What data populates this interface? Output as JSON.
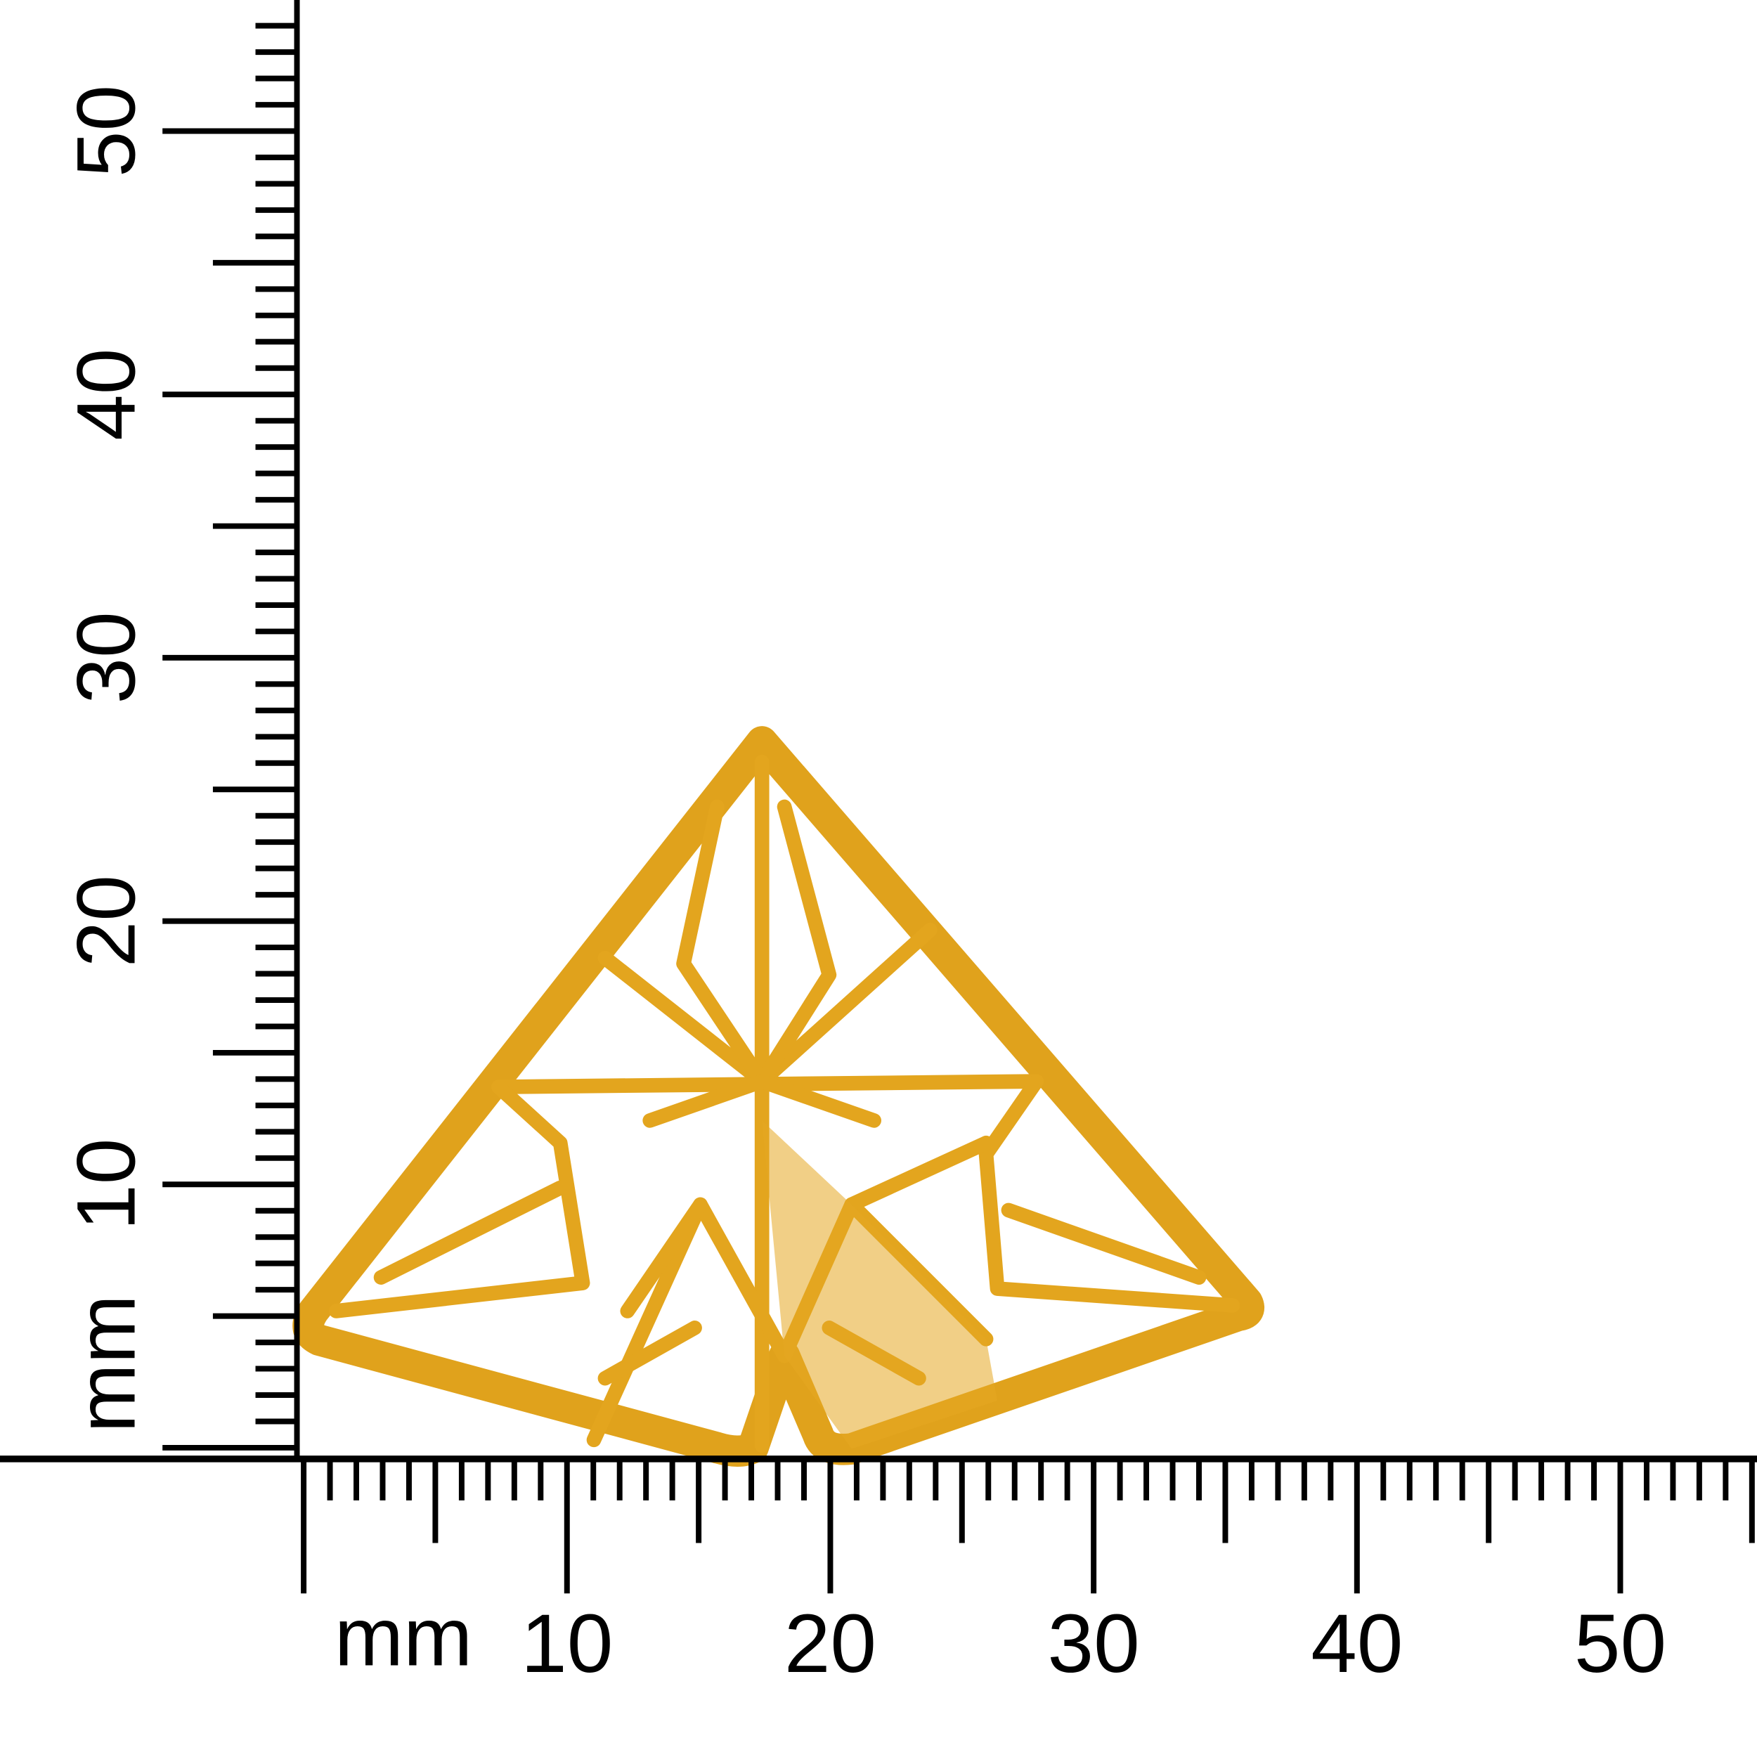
{
  "rulers": {
    "vertical": {
      "unit": "mm",
      "labels": [
        "10",
        "20",
        "30",
        "40",
        "50"
      ]
    },
    "horizontal": {
      "unit": "mm",
      "labels": [
        "10",
        "20",
        "30",
        "40",
        "50"
      ]
    }
  }
}
